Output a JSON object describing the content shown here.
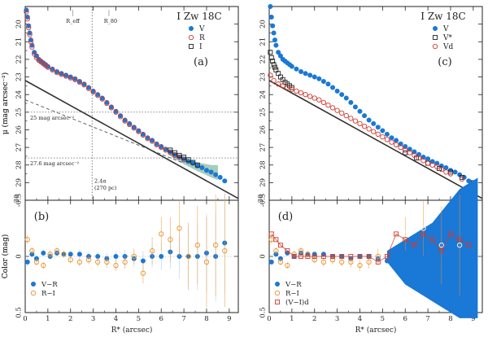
{
  "colors": {
    "blue": "#1a78d6",
    "red": "#d23a2e",
    "orange": "#e8922a",
    "black": "#222222",
    "band": "#7fb89b",
    "errblue": "#9ec6ea"
  },
  "chart_data": [
    {
      "id": "a",
      "type": "scatter",
      "panel_label": "(a)",
      "title": "I Zw 18C",
      "ylabel": "μ (mag arcsec⁻²)",
      "xlim": [
        0,
        9.4
      ],
      "ylim": [
        30,
        19
      ],
      "yticks": [
        20,
        21,
        22,
        23,
        24,
        25,
        26,
        27,
        28,
        29
      ],
      "xticks": [
        0,
        1,
        2,
        3,
        4,
        5,
        6,
        7,
        8,
        9
      ],
      "legend": [
        "V",
        "R",
        "I"
      ],
      "annotations": {
        "reff": "R_eff",
        "r80": "R_80",
        "iso25": "25 mag arcsec⁻²",
        "iso276": "27.6 mag arcsec⁻²",
        "scale": "2.4α",
        "scale_pc": "(270 pc)"
      },
      "reff_x": 2.85,
      "r80_x": 3.55,
      "iso_levels": [
        25,
        27.6
      ],
      "series": [
        {
          "name": "V",
          "marker": "filled-circle",
          "x": [
            0.05,
            0.1,
            0.15,
            0.2,
            0.25,
            0.3,
            0.4,
            0.5,
            0.6,
            0.7,
            0.8,
            0.9,
            1.0,
            1.2,
            1.4,
            1.6,
            1.8,
            2.0,
            2.2,
            2.4,
            2.6,
            2.8,
            3.0,
            3.2,
            3.4,
            3.6,
            3.8,
            4.0,
            4.2,
            4.4,
            4.6,
            4.8,
            5.0,
            5.2,
            5.4,
            5.6,
            5.8,
            6.0,
            6.2,
            6.4,
            6.6,
            6.8,
            7.0,
            7.2,
            7.4,
            7.6,
            7.8,
            8.0,
            8.2,
            8.4,
            8.6,
            8.8
          ],
          "y": [
            19.2,
            19.6,
            20.1,
            20.5,
            20.9,
            21.2,
            21.6,
            21.8,
            22.0,
            22.1,
            22.2,
            22.3,
            22.4,
            22.55,
            22.7,
            22.8,
            22.9,
            23.0,
            23.1,
            23.25,
            23.4,
            23.6,
            23.8,
            24.0,
            24.2,
            24.45,
            24.7,
            24.95,
            25.2,
            25.45,
            25.65,
            25.85,
            26.05,
            26.25,
            26.45,
            26.6,
            26.8,
            26.95,
            27.1,
            27.25,
            27.4,
            27.55,
            27.65,
            27.8,
            27.9,
            28.05,
            28.15,
            28.3,
            28.4,
            28.55,
            28.7,
            28.9
          ]
        },
        {
          "name": "R",
          "marker": "open-circle",
          "x": [
            0.05,
            0.1,
            0.15,
            0.2,
            0.25,
            0.3,
            0.4,
            0.5,
            0.6,
            0.7,
            0.8,
            0.9,
            1.0,
            1.2,
            1.4,
            1.6,
            1.8,
            2.0,
            2.2,
            2.4,
            2.6,
            2.8,
            3.0,
            3.2,
            3.4,
            3.6,
            3.8,
            4.0,
            4.2,
            4.4,
            4.6,
            4.8,
            5.0,
            5.2,
            5.4,
            5.6,
            5.8,
            6.0,
            6.2,
            6.4,
            6.6,
            6.8,
            7.0
          ],
          "y": [
            19.3,
            19.7,
            20.2,
            20.6,
            21.0,
            21.3,
            21.7,
            21.9,
            22.05,
            22.15,
            22.25,
            22.35,
            22.45,
            22.6,
            22.75,
            22.85,
            22.95,
            23.05,
            23.15,
            23.3,
            23.45,
            23.65,
            23.85,
            24.05,
            24.25,
            24.5,
            24.75,
            25.0,
            25.25,
            25.5,
            25.7,
            25.9,
            26.1,
            26.3,
            26.5,
            26.65,
            26.85,
            27.0,
            27.15,
            27.3,
            27.45,
            27.55,
            27.7
          ]
        },
        {
          "name": "I",
          "marker": "open-square",
          "x": [
            6.4,
            6.6,
            6.8,
            7.0,
            7.2,
            7.4,
            7.6
          ],
          "y": [
            27.15,
            27.3,
            27.45,
            27.55,
            27.7,
            27.85,
            28.0
          ]
        }
      ],
      "fit_line": {
        "x0": 0,
        "y0": 23.2,
        "x1": 9.4,
        "y1": 29.9
      },
      "dashed_line": {
        "x0": 0,
        "y0": 24.3,
        "x1": 7.0,
        "y1": 27.9
      }
    },
    {
      "id": "b",
      "type": "scatter",
      "panel_label": "(b)",
      "ylabel": "Color (mag)",
      "xlabel": "R* (arcsec)",
      "xlim": [
        0,
        9.4
      ],
      "ylim": [
        0.5,
        -0.5
      ],
      "ytick_labels": [
        "0.5",
        "0",
        "-0.5"
      ],
      "yticks": [
        0.5,
        0,
        -0.5
      ],
      "xticks": [
        0,
        1,
        2,
        3,
        4,
        5,
        6,
        7,
        8,
        9
      ],
      "legend": [
        "V−R",
        "R−I"
      ],
      "series": [
        {
          "name": "V−R",
          "marker": "filled-circle",
          "x": [
            0.1,
            0.3,
            0.5,
            0.8,
            1.1,
            1.4,
            1.7,
            2.0,
            2.4,
            2.8,
            3.2,
            3.6,
            4.0,
            4.4,
            4.8,
            5.2,
            5.6,
            6.0,
            6.4,
            6.8,
            7.2,
            7.6,
            8.0,
            8.4,
            8.8
          ],
          "y": [
            0.05,
            -0.02,
            0.02,
            -0.03,
            0.0,
            -0.03,
            -0.02,
            -0.02,
            -0.02,
            0.0,
            0.0,
            0.02,
            0.0,
            0.0,
            0.02,
            0.04,
            0.0,
            0.0,
            -0.04,
            0.0,
            0.0,
            0.0,
            -0.03,
            0.0,
            -0.12
          ],
          "err": [
            0.04,
            0.03,
            0.03,
            0.03,
            0.03,
            0.03,
            0.03,
            0.03,
            0.04,
            0.04,
            0.04,
            0.05,
            0.05,
            0.06,
            0.07,
            0.09,
            0.1,
            0.12,
            0.15,
            0.2,
            0.25,
            0.3,
            0.35,
            0.4,
            0.45
          ]
        },
        {
          "name": "R−I",
          "marker": "open-circle",
          "x": [
            0.1,
            0.3,
            0.5,
            0.8,
            1.1,
            1.4,
            1.7,
            2.0,
            2.4,
            2.8,
            3.2,
            3.6,
            4.0,
            4.4,
            4.8,
            5.2,
            5.6,
            6.0,
            6.4,
            6.8,
            7.2,
            7.6,
            8.0,
            8.4,
            8.8
          ],
          "y": [
            -0.15,
            -0.05,
            0.05,
            0.08,
            -0.02,
            -0.05,
            -0.02,
            0.03,
            0.05,
            0.03,
            0.05,
            0.05,
            0.08,
            0.05,
            0.0,
            0.15,
            -0.05,
            -0.2,
            -0.15,
            -0.25,
            0.0,
            -0.1,
            0.05,
            -0.1,
            -0.05
          ],
          "err": [
            0.04,
            0.03,
            0.03,
            0.03,
            0.03,
            0.03,
            0.03,
            0.03,
            0.04,
            0.04,
            0.04,
            0.05,
            0.05,
            0.06,
            0.07,
            0.09,
            0.12,
            0.15,
            0.2,
            0.25,
            0.3,
            0.35,
            0.4,
            0.45,
            0.5
          ]
        }
      ]
    },
    {
      "id": "c",
      "type": "scatter",
      "panel_label": "(c)",
      "title": "I Zw 18C",
      "ylabel": "μ (mag arcsec⁻²)",
      "xlim": [
        0,
        9.4
      ],
      "ylim": [
        30,
        19
      ],
      "yticks": [
        20,
        21,
        22,
        23,
        24,
        25,
        26,
        27,
        28,
        29
      ],
      "xticks": [
        0,
        1,
        2,
        3,
        4,
        5,
        6,
        7,
        8,
        9
      ],
      "legend": [
        "V",
        "V*",
        "Vd"
      ],
      "series": [
        {
          "name": "V",
          "marker": "filled-circle",
          "x": [
            0.05,
            0.1,
            0.15,
            0.2,
            0.25,
            0.3,
            0.4,
            0.5,
            0.6,
            0.7,
            0.8,
            0.9,
            1.0,
            1.2,
            1.4,
            1.6,
            1.8,
            2.0,
            2.2,
            2.4,
            2.6,
            2.8,
            3.0,
            3.2,
            3.4,
            3.6,
            3.8,
            4.0,
            4.2,
            4.4,
            4.6,
            4.8,
            5.0,
            5.2,
            5.4,
            5.6,
            5.8,
            6.0,
            6.2,
            6.4,
            6.6,
            6.8,
            7.0,
            7.2,
            7.4,
            7.6,
            7.8,
            8.0,
            8.2,
            8.4,
            8.6,
            8.8,
            9.0
          ],
          "y": [
            19.0,
            19.6,
            20.1,
            20.5,
            20.9,
            21.2,
            21.6,
            21.8,
            22.0,
            22.1,
            22.2,
            22.3,
            22.4,
            22.55,
            22.7,
            22.8,
            22.9,
            23.0,
            23.1,
            23.25,
            23.4,
            23.6,
            23.8,
            24.0,
            24.2,
            24.45,
            24.7,
            24.95,
            25.2,
            25.45,
            25.65,
            25.85,
            26.05,
            26.25,
            26.45,
            26.6,
            26.8,
            26.95,
            27.1,
            27.25,
            27.4,
            27.55,
            27.65,
            27.8,
            27.9,
            28.05,
            28.15,
            28.3,
            28.4,
            28.55,
            28.7,
            28.9,
            29.05
          ]
        },
        {
          "name": "V*",
          "marker": "open-square",
          "x": [
            0.05,
            0.1,
            0.15,
            0.2,
            0.25,
            0.3,
            0.4,
            0.5,
            0.6,
            0.7,
            0.8,
            0.9,
            1.0,
            6.0,
            6.5,
            7.0,
            7.5,
            8.0,
            8.5,
            9.0
          ],
          "y": [
            21.6,
            21.9,
            22.1,
            22.3,
            22.45,
            22.6,
            22.8,
            23.0,
            23.15,
            23.3,
            23.4,
            23.5,
            23.6,
            27.3,
            27.6,
            27.9,
            28.2,
            28.4,
            28.7,
            29.0
          ]
        },
        {
          "name": "Vd",
          "marker": "open-circle",
          "x": [
            0.05,
            0.2,
            0.4,
            0.6,
            0.8,
            1.0,
            1.2,
            1.4,
            1.6,
            1.8,
            2.0,
            2.2,
            2.4,
            2.6,
            2.8,
            3.0,
            3.2,
            3.4,
            3.6,
            3.8,
            4.0,
            4.2,
            4.4,
            4.6,
            4.8,
            5.0,
            5.2,
            5.4,
            5.6,
            5.8,
            6.0,
            6.2,
            6.4,
            6.6,
            6.8,
            7.0,
            7.2,
            7.4,
            7.6,
            7.8,
            8.0,
            8.5,
            9.0
          ],
          "y": [
            22.9,
            23.2,
            23.4,
            23.5,
            23.6,
            23.7,
            23.8,
            23.9,
            24.0,
            24.1,
            24.2,
            24.3,
            24.45,
            24.6,
            24.75,
            24.9,
            25.05,
            25.2,
            25.35,
            25.5,
            25.65,
            25.8,
            25.95,
            26.1,
            26.25,
            26.4,
            26.55,
            26.7,
            26.85,
            27.0,
            27.15,
            27.3,
            27.45,
            27.6,
            27.75,
            27.9,
            28.0,
            28.1,
            28.25,
            28.4,
            28.5,
            28.8,
            29.1
          ]
        }
      ],
      "fit_line": {
        "x0": 0,
        "y0": 23.2,
        "x1": 9.4,
        "y1": 29.9
      }
    },
    {
      "id": "d",
      "type": "scatter",
      "panel_label": "(d)",
      "ylabel": "Color (mag)",
      "xlabel": "R* (arcsec)",
      "xlim": [
        0,
        9.4
      ],
      "ylim": [
        0.5,
        -0.5
      ],
      "ytick_labels": [
        "0.5",
        "0",
        "-0.5"
      ],
      "yticks": [
        0.5,
        0,
        -0.5
      ],
      "xticks": [
        0,
        1,
        2,
        3,
        4,
        5,
        6,
        7,
        8,
        9
      ],
      "legend": [
        "V−R",
        "R−I",
        "(V−I)d"
      ],
      "band": {
        "x": [
          5.2,
          5.6,
          6.0,
          6.4,
          6.8,
          7.2,
          7.6,
          8.0,
          8.4,
          8.8,
          9.2
        ],
        "lo": [
          -0.05,
          -0.1,
          -0.15,
          -0.2,
          -0.25,
          -0.3,
          -0.4,
          -0.5,
          -0.6,
          -0.65,
          -0.7
        ],
        "hi": [
          0.05,
          0.15,
          0.25,
          0.3,
          0.35,
          0.4,
          0.45,
          0.5,
          0.55,
          0.55,
          0.55
        ]
      },
      "series": [
        {
          "name": "V−R",
          "marker": "filled-circle",
          "x": [
            0.1,
            0.3,
            0.5,
            0.8,
            1.1,
            1.4,
            1.7,
            2.0,
            2.4,
            2.8,
            3.2,
            3.6,
            4.0,
            4.4,
            4.8,
            5.2,
            5.6,
            6.0,
            6.4,
            6.8,
            7.2,
            7.6,
            8.0,
            8.4,
            8.8
          ],
          "y": [
            0.05,
            -0.02,
            0.02,
            -0.03,
            0.0,
            -0.03,
            -0.02,
            -0.02,
            -0.02,
            0.0,
            0.0,
            0.02,
            0.0,
            0.0,
            0.02,
            0.04,
            0.0,
            0.0,
            -0.04,
            0.0,
            0.0,
            0.0,
            -0.03,
            0.0,
            -0.12
          ]
        },
        {
          "name": "R−I",
          "marker": "open-circle",
          "x": [
            0.1,
            0.3,
            0.5,
            0.8,
            1.1,
            1.4,
            1.7,
            2.0,
            2.4,
            2.8,
            3.2,
            3.6,
            4.0,
            4.4,
            4.8,
            6.0,
            6.8,
            7.6,
            8.4
          ],
          "y": [
            -0.15,
            -0.05,
            0.05,
            0.08,
            -0.02,
            -0.05,
            -0.02,
            0.03,
            0.05,
            0.03,
            0.05,
            0.05,
            0.08,
            0.05,
            0.0,
            -0.2,
            -0.25,
            -0.1,
            -0.1
          ],
          "err": [
            0.04,
            0.03,
            0.03,
            0.03,
            0.03,
            0.03,
            0.03,
            0.03,
            0.04,
            0.04,
            0.04,
            0.05,
            0.05,
            0.06,
            0.07,
            0.15,
            0.25,
            0.35,
            0.45
          ]
        },
        {
          "name": "(V−I)d",
          "marker": "open-square",
          "x": [
            0.1,
            0.3,
            0.5,
            0.8,
            1.1,
            1.4,
            1.7,
            2.0,
            2.4,
            2.8,
            3.2,
            3.6,
            4.0,
            4.4,
            4.8,
            5.2,
            5.6,
            6.0,
            6.4,
            6.8,
            7.2,
            7.6,
            8.0,
            8.4,
            8.8
          ],
          "y": [
            -0.2,
            -0.15,
            -0.1,
            -0.05,
            0.0,
            0.0,
            0.0,
            0.0,
            0.0,
            0.0,
            0.0,
            0.0,
            0.0,
            0.0,
            0.05,
            0.0,
            -0.2,
            -0.15,
            -0.1,
            -0.2,
            -0.15,
            -0.05,
            -0.2,
            -0.15,
            -0.1
          ]
        }
      ]
    }
  ]
}
